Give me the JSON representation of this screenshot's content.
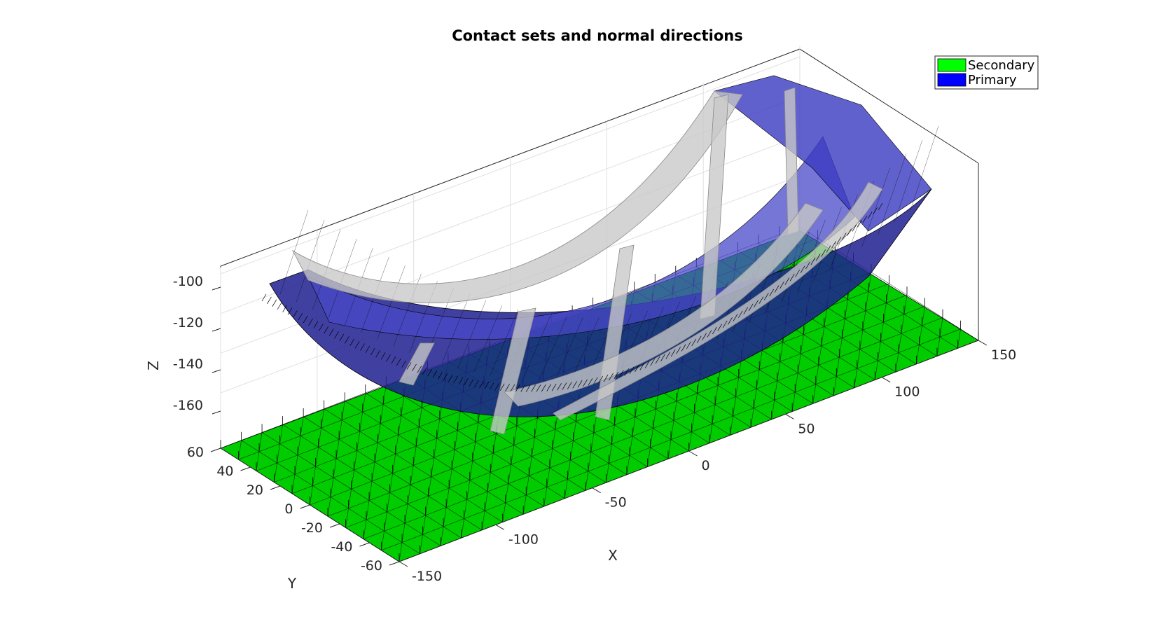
{
  "chart_data": {
    "type": "surface3d",
    "title": "Contact sets and normal directions",
    "xlabel": "X",
    "ylabel": "Y",
    "zlabel": "Z",
    "x_ticks": [
      -150,
      -100,
      -50,
      0,
      50,
      100,
      150
    ],
    "y_ticks": [
      -60,
      -40,
      -20,
      0,
      20,
      40,
      60
    ],
    "z_ticks": [
      -160,
      -140,
      -120,
      -100
    ],
    "xlim": [
      -160,
      160
    ],
    "ylim": [
      -65,
      65
    ],
    "zlim": [
      -180,
      -80
    ],
    "grid": true,
    "legend_position": "top-right",
    "series": [
      {
        "name": "Secondary",
        "color": "#00ff00"
      },
      {
        "name": "Primary",
        "color": "#0000ff"
      }
    ]
  }
}
